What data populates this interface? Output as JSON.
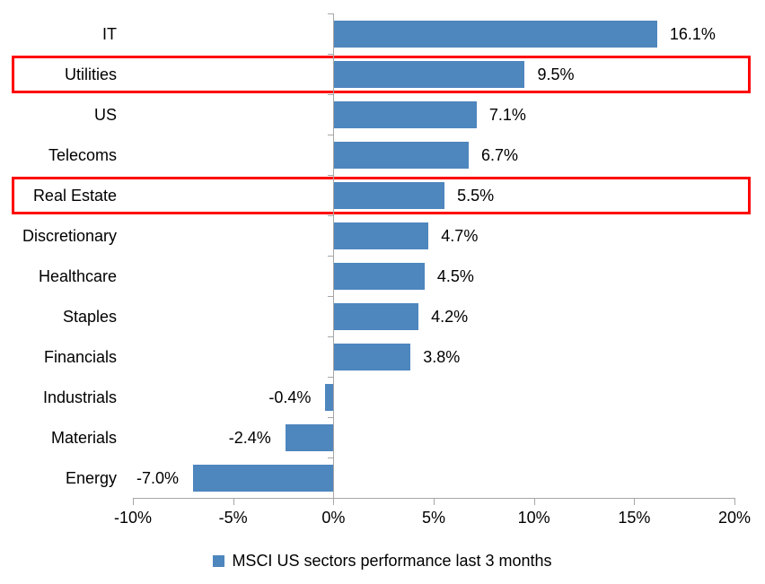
{
  "chart_data": {
    "type": "bar",
    "orientation": "horizontal",
    "categories": [
      "IT",
      "Utilities",
      "US",
      "Telecoms",
      "Real Estate",
      "Discretionary",
      "Healthcare",
      "Staples",
      "Financials",
      "Industrials",
      "Materials",
      "Energy"
    ],
    "values": [
      16.1,
      9.5,
      7.1,
      6.7,
      5.5,
      4.7,
      4.5,
      4.2,
      3.8,
      -0.4,
      -2.4,
      -7.0
    ],
    "value_labels": [
      "16.1%",
      "9.5%",
      "7.1%",
      "6.7%",
      "5.5%",
      "4.7%",
      "4.5%",
      "4.2%",
      "3.8%",
      "-0.4%",
      "-2.4%",
      "-7.0%"
    ],
    "xlim": [
      -10,
      20
    ],
    "x_tick_values": [
      -10,
      -5,
      0,
      5,
      10,
      15,
      20
    ],
    "x_tick_labels": [
      "-10%",
      "-5%",
      "0%",
      "5%",
      "10%",
      "15%",
      "20%"
    ],
    "highlighted_categories": [
      "Utilities",
      "Real Estate"
    ],
    "legend": "MSCI US sectors performance last 3 months",
    "legend_position": "bottom",
    "grid": false,
    "colors": {
      "bar": "#4E86BE",
      "axis": "#A6A6A6",
      "highlight": "#FF0000",
      "text": "#000000",
      "background": "#FFFFFF"
    }
  }
}
